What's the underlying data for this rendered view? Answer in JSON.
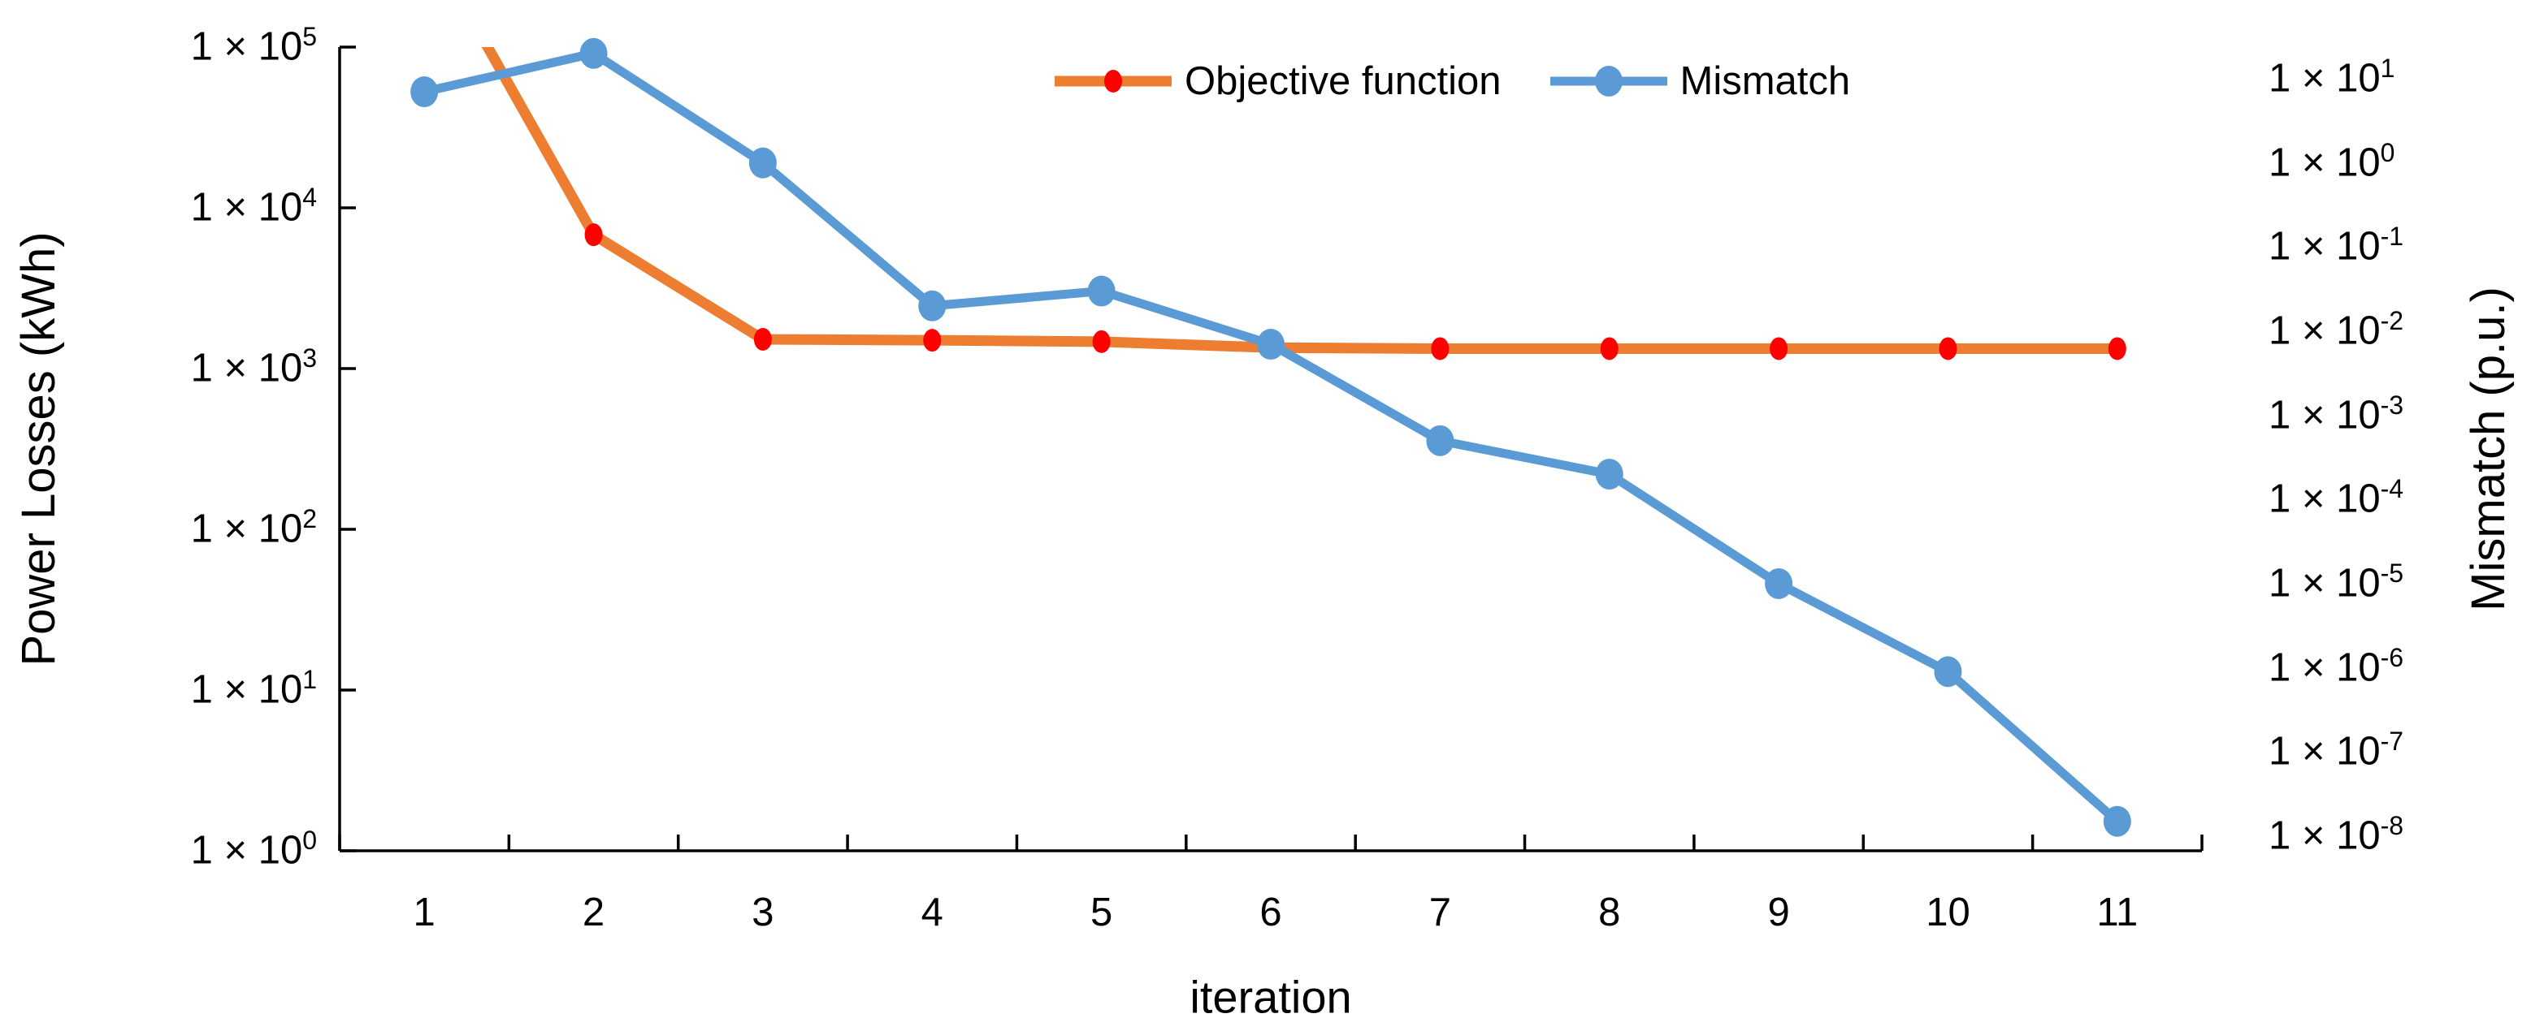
{
  "chart_data": {
    "type": "line",
    "title": "",
    "categories": [
      "1",
      "2",
      "3",
      "4",
      "5",
      "6",
      "7",
      "8",
      "9",
      "10",
      "11"
    ],
    "x_axis": {
      "title": "iteration"
    },
    "left_axis": {
      "title": "Power Losses (kWh)",
      "scale": "log",
      "max_exp": 5,
      "min_exp": 0,
      "tick_base": "1 × 10",
      "tick_exponents": [
        "5",
        "4",
        "3",
        "2",
        "1",
        "0"
      ]
    },
    "right_axis": {
      "title": "Mismatch (p.u.)",
      "scale": "log",
      "max_exp": 1.376,
      "min_exp": -8.174,
      "tick_base": "1 × 10",
      "tick_exponents": [
        "1",
        "0",
        "-1",
        "-2",
        "-3",
        "-4",
        "-5",
        "-6",
        "-7",
        "-8"
      ]
    },
    "series": [
      {
        "name": "Objective function",
        "axis": "left",
        "line_color": "#ED7D31",
        "marker_color": "#FF0000",
        "line_width": 13,
        "marker_rx": 11,
        "marker_ry": 14,
        "values": [
          500000,
          6800,
          1520,
          1500,
          1470,
          1350,
          1330,
          1330,
          1330,
          1330,
          1330
        ]
      },
      {
        "name": "Mismatch",
        "axis": "right",
        "line_color": "#5B9BD5",
        "marker_color": "#5B9BD5",
        "line_width": 11,
        "marker_rx": 17,
        "marker_ry": 19,
        "values": [
          7,
          20,
          1,
          0.02,
          0.03,
          0.007,
          0.0005,
          0.0002,
          1e-05,
          9e-07,
          1.5e-08
        ]
      }
    ],
    "legend_position": "top-center",
    "axis_color": "#000000",
    "background_color": "#FFFFFF",
    "grid": "off"
  }
}
